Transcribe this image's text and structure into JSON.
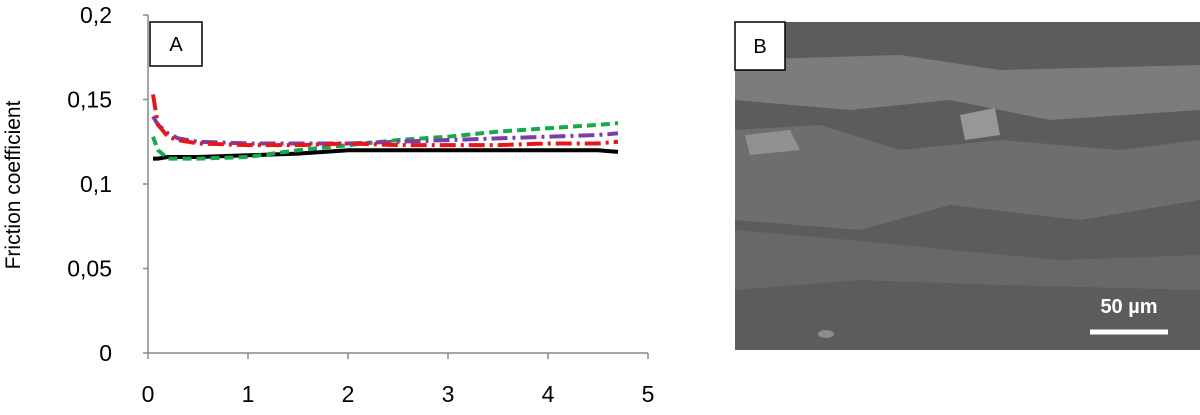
{
  "chart_data": {
    "type": "line",
    "panel_label": "A",
    "y_label": "Friction coefficient",
    "x": [
      0.05,
      0.1,
      0.2,
      0.3,
      0.5,
      1,
      1.5,
      2,
      2.5,
      3,
      3.5,
      4,
      4.5,
      4.7
    ],
    "series": [
      {
        "color": "#000000",
        "linestyle": "solid",
        "values": [
          0.115,
          0.115,
          0.116,
          0.116,
          0.116,
          0.117,
          0.118,
          0.12,
          0.12,
          0.12,
          0.12,
          0.12,
          0.12,
          0.119
        ]
      },
      {
        "color": "#1aa84c",
        "linestyle": "dashed",
        "values": [
          0.128,
          0.12,
          0.115,
          0.115,
          0.115,
          0.116,
          0.12,
          0.123,
          0.126,
          0.128,
          0.131,
          0.133,
          0.135,
          0.136
        ]
      },
      {
        "color": "#7a3fa6",
        "linestyle": "dashdot",
        "values": [
          0.14,
          0.135,
          0.13,
          0.127,
          0.125,
          0.124,
          0.124,
          0.124,
          0.125,
          0.126,
          0.127,
          0.128,
          0.129,
          0.13
        ]
      },
      {
        "color": "#e8161b",
        "linestyle": "dashdot",
        "values": [
          0.153,
          0.135,
          0.128,
          0.126,
          0.124,
          0.123,
          0.123,
          0.124,
          0.123,
          0.123,
          0.123,
          0.124,
          0.124,
          0.125
        ]
      }
    ],
    "xlim": [
      0,
      5
    ],
    "xticks": [
      0,
      1,
      2,
      3,
      4,
      5
    ],
    "ylim": [
      0,
      0.2
    ],
    "yticks": [
      {
        "value": 0,
        "label": "0"
      },
      {
        "value": 0.05,
        "label": "0,05"
      },
      {
        "value": 0.1,
        "label": "0,1"
      },
      {
        "value": 0.15,
        "label": "0,15"
      },
      {
        "value": 0.2,
        "label": "0,2"
      }
    ]
  },
  "image": {
    "panel_label": "B",
    "scale_bar": "50 µm"
  }
}
